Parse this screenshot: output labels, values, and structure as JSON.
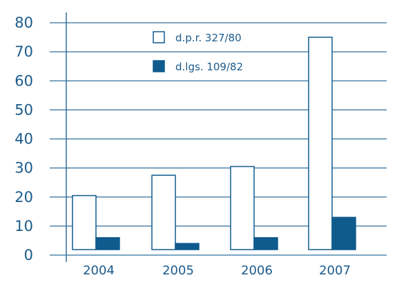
{
  "chart_data": {
    "type": "bar",
    "categories": [
      "2004",
      "2005",
      "2006",
      "2007"
    ],
    "series": [
      {
        "name": "d.p.r. 327/80",
        "values": [
          20.5,
          27.5,
          30.5,
          75
        ],
        "fill": "#ffffff",
        "stroke": "#0f5b8e"
      },
      {
        "name": "d.lgs. 109/82",
        "values": [
          6,
          4,
          6,
          13
        ],
        "fill": "#0f5b8e",
        "stroke": "#0f5b8e"
      }
    ],
    "ylim": [
      0,
      80
    ],
    "yticks": [
      "0",
      "10",
      "20",
      "30",
      "40",
      "50",
      "60",
      "70",
      "80"
    ],
    "grid": true,
    "legend": "top-center",
    "colors": {
      "axis": "#1a5a8c",
      "grid": "#2f6e9c",
      "text": "#1a5a8c"
    }
  }
}
